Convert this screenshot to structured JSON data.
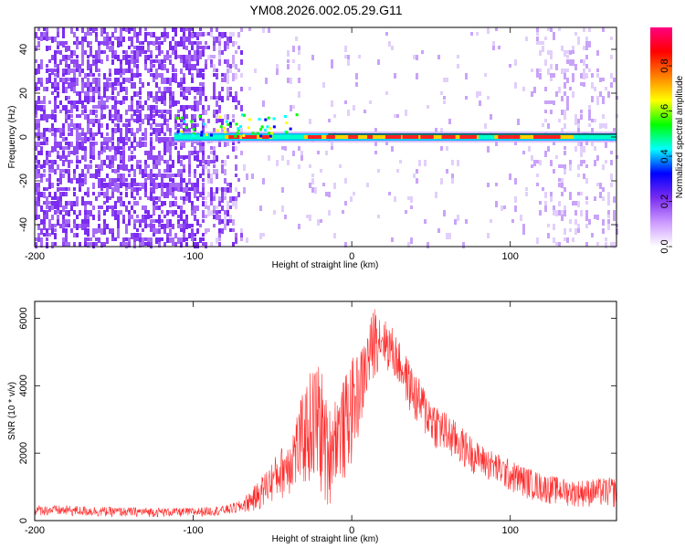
{
  "figure": {
    "title": "YM08.2026.002.05.29.G11"
  },
  "chart_data": [
    {
      "type": "heatmap",
      "name": "spectrogram",
      "xlabel": "Height of straight line (km)",
      "ylabel": "Frequency (Hz)",
      "xlim": [
        -200,
        167
      ],
      "ylim": [
        -50,
        50
      ],
      "xticks": [
        -200,
        -100,
        0,
        100
      ],
      "xtick_labels": [
        "-200",
        "-100",
        "0",
        "100"
      ],
      "yticks": [
        -40,
        -20,
        0,
        20,
        40
      ],
      "ytick_labels": [
        "-40",
        "-20",
        "0",
        "20",
        "40"
      ],
      "colorbar": {
        "label": "Normalized spectral amplitude",
        "range": [
          0,
          0.97
        ],
        "ticks": [
          0.0,
          0.2,
          0.4,
          0.6,
          0.8
        ],
        "tick_labels": [
          "0.0",
          "0.2",
          "0.4",
          "0.6",
          "0.8"
        ],
        "colors": [
          "#ffffff",
          "#cc99ff",
          "#7a2cf0",
          "#0000ff",
          "#00ffff",
          "#00ff00",
          "#ffff00",
          "#ff7f00",
          "#ff0000",
          "#ff0080"
        ]
      },
      "features": {
        "noise_region_x": [
          -200,
          -70
        ],
        "carrier_frequency_hz": 0,
        "carrier_start_x": -112,
        "strong_segments_x": [
          [
            -80,
            -50
          ],
          [
            -30,
            80
          ],
          [
            90,
            140
          ]
        ]
      }
    },
    {
      "type": "line",
      "name": "snr",
      "xlabel": "Height of straight line (km)",
      "ylabel": "SNR (10 * v/v)",
      "xlim": [
        -200,
        167
      ],
      "ylim": [
        0,
        6500
      ],
      "xticks": [
        -200,
        -100,
        0,
        100
      ],
      "xtick_labels": [
        "-200",
        "-100",
        "0",
        "100"
      ],
      "yticks": [
        0,
        2000,
        4000,
        6000
      ],
      "ytick_labels": [
        "0",
        "2000",
        "4000",
        "6000"
      ],
      "color": "#ff2a2a",
      "envelope": {
        "x": [
          -200,
          -180,
          -150,
          -120,
          -100,
          -80,
          -70,
          -60,
          -50,
          -40,
          -30,
          -25,
          -20,
          -15,
          -10,
          -5,
          0,
          5,
          10,
          15,
          20,
          25,
          30,
          40,
          50,
          60,
          80,
          100,
          120,
          140,
          167
        ],
        "upper": [
          450,
          450,
          400,
          380,
          380,
          450,
          600,
          1100,
          1800,
          2500,
          3900,
          4600,
          4800,
          3300,
          3800,
          4200,
          4800,
          5000,
          5700,
          6500,
          6000,
          5800,
          5300,
          4400,
          3700,
          3200,
          2300,
          1800,
          1400,
          1200,
          1300
        ],
        "lower": [
          150,
          120,
          100,
          100,
          100,
          150,
          200,
          250,
          500,
          700,
          900,
          800,
          600,
          200,
          1200,
          1000,
          1600,
          2500,
          3500,
          4300,
          4600,
          4200,
          3900,
          2800,
          2200,
          1800,
          1300,
          800,
          500,
          400,
          350
        ]
      }
    }
  ]
}
